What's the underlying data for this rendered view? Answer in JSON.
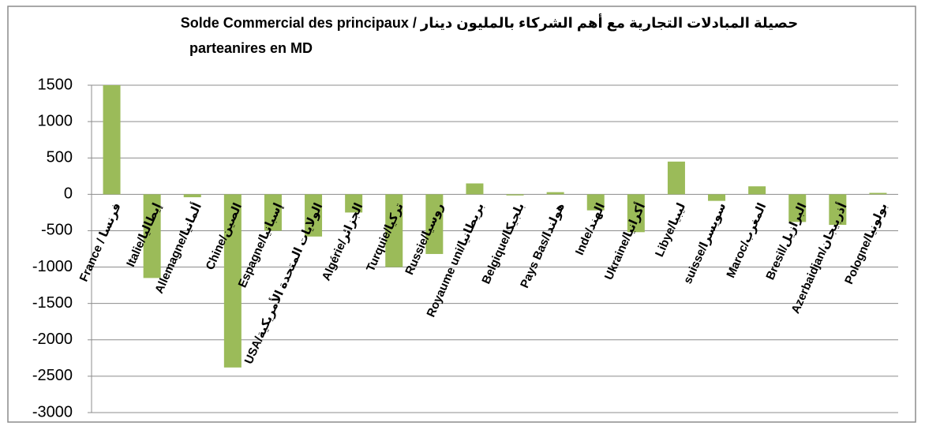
{
  "chart_data": {
    "type": "bar",
    "title": [
      "Solde Commercial des principaux / حصيلة المبادلات التجارية مع أهم الشركاء بالمليون دينار",
      "parteanires en MD"
    ],
    "categories": [
      "France / فرنسا",
      "Italie/إيطاليا",
      "Allemagne/ألمانيا",
      "Chine/الصين",
      "Espagne/إسبانيا",
      "USA/الولايات المتحدة الأمريكية",
      "Algérie/الجزائر",
      "Turquie/تركيا",
      "Russie/روسيا",
      "Royaume uni/بريطانيا",
      "Belgique/بلجيكا",
      "Pays Bas/هولندا",
      "Inde/الهند",
      "Ukraine/أكرانيا",
      "Libye/ليبيا",
      "suisse/سويسرا",
      "Maroc/المغرب",
      "Bresil/البرازيل",
      "Azerbaidjan/أذربيجان",
      "Pologne/بولونيا"
    ],
    "values": [
      1500,
      -1150,
      -40,
      -2380,
      -500,
      -580,
      -250,
      -1000,
      -820,
      150,
      -15,
      30,
      -220,
      -520,
      450,
      -90,
      110,
      -380,
      -420,
      20
    ],
    "color": "#9bbb59",
    "ylim": [
      -3000,
      1500
    ],
    "yticks": [
      -3000,
      -2500,
      -2000,
      -1500,
      -1000,
      -500,
      0,
      500,
      1000,
      1500
    ],
    "grid": true
  }
}
